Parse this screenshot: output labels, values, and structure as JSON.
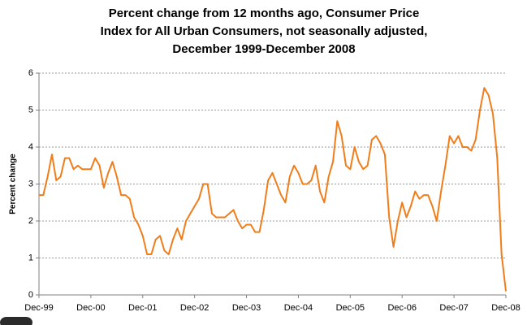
{
  "chart_data": {
    "type": "line",
    "title": [
      "Percent change from 12 months ago, Consumer Price",
      "Index for All Urban Consumers, not seasonally adjusted,",
      "December 1999-December 2008"
    ],
    "y_label": "Percent change",
    "categories": [
      "Dec-99",
      null,
      null,
      null,
      null,
      null,
      null,
      null,
      null,
      null,
      null,
      null,
      "Dec-00",
      null,
      null,
      null,
      null,
      null,
      null,
      null,
      null,
      null,
      null,
      null,
      "Dec-01",
      null,
      null,
      null,
      null,
      null,
      null,
      null,
      null,
      null,
      null,
      null,
      "Dec-02",
      null,
      null,
      null,
      null,
      null,
      null,
      null,
      null,
      null,
      null,
      null,
      "Dec-03",
      null,
      null,
      null,
      null,
      null,
      null,
      null,
      null,
      null,
      null,
      null,
      "Dec-04",
      null,
      null,
      null,
      null,
      null,
      null,
      null,
      null,
      null,
      null,
      null,
      "Dec-05",
      null,
      null,
      null,
      null,
      null,
      null,
      null,
      null,
      null,
      null,
      null,
      "Dec-06",
      null,
      null,
      null,
      null,
      null,
      null,
      null,
      null,
      null,
      null,
      null,
      "Dec-07",
      null,
      null,
      null,
      null,
      null,
      null,
      null,
      null,
      null,
      null,
      null,
      "Dec-08"
    ],
    "series": [
      {
        "name": "Percent change",
        "color": "#f07d1a",
        "values": [
          2.7,
          2.7,
          3.2,
          3.8,
          3.1,
          3.2,
          3.7,
          3.7,
          3.4,
          3.5,
          3.4,
          3.4,
          3.4,
          3.7,
          3.5,
          2.9,
          3.3,
          3.6,
          3.2,
          2.7,
          2.7,
          2.6,
          2.1,
          1.9,
          1.6,
          1.1,
          1.1,
          1.5,
          1.6,
          1.2,
          1.1,
          1.5,
          1.8,
          1.5,
          2.0,
          2.2,
          2.4,
          2.6,
          3.0,
          3.0,
          2.2,
          2.1,
          2.1,
          2.1,
          2.2,
          2.3,
          2.0,
          1.8,
          1.9,
          1.9,
          1.7,
          1.7,
          2.3,
          3.1,
          3.3,
          3.0,
          2.7,
          2.5,
          3.2,
          3.5,
          3.3,
          3.0,
          3.0,
          3.1,
          3.5,
          2.8,
          2.5,
          3.2,
          3.6,
          4.7,
          4.3,
          3.5,
          3.4,
          4.0,
          3.6,
          3.4,
          3.5,
          4.2,
          4.3,
          4.1,
          3.8,
          2.1,
          1.3,
          2.0,
          2.5,
          2.1,
          2.4,
          2.8,
          2.6,
          2.7,
          2.7,
          2.4,
          2.0,
          2.8,
          3.5,
          4.3,
          4.1,
          4.3,
          4.0,
          4.0,
          3.9,
          4.2,
          5.0,
          5.6,
          5.4,
          4.9,
          3.7,
          1.1,
          0.1
        ]
      }
    ],
    "ylim": [
      0,
      6
    ],
    "yticks": [
      0,
      1,
      2,
      3,
      4,
      5,
      6
    ],
    "grid": true
  }
}
